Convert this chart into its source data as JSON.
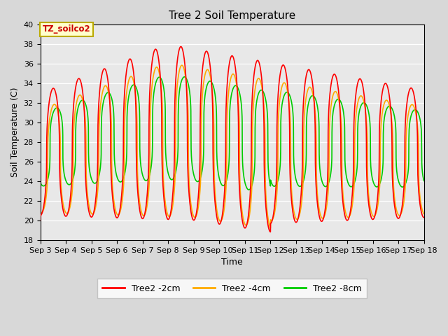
{
  "title": "Tree 2 Soil Temperature",
  "xlabel": "Time",
  "ylabel": "Soil Temperature (C)",
  "ylim": [
    18,
    40
  ],
  "xlim": [
    3,
    18
  ],
  "annotation_text": "TZ_soilco2",
  "annotation_bg": "#ffffcc",
  "annotation_border": "#bbaa00",
  "fig_facecolor": "#d8d8d8",
  "ax_facecolor": "#e8e8e8",
  "legend_labels": [
    "Tree2 -2cm",
    "Tree2 -4cm",
    "Tree2 -8cm"
  ],
  "line_colors": [
    "#ff0000",
    "#ffaa00",
    "#00cc00"
  ],
  "line_width": 1.2,
  "xtick_labels": [
    "Sep 3",
    "Sep 4",
    "Sep 5",
    "Sep 6",
    "Sep 7",
    "Sep 8",
    "Sep 9",
    "Sep 10",
    "Sep 11",
    "Sep 12",
    "Sep 13",
    "Sep 14",
    "Sep 15",
    "Sep 16",
    "Sep 17",
    "Sep 18"
  ],
  "x_days": [
    3,
    4,
    5,
    6,
    7,
    8,
    9,
    10,
    11,
    12,
    13,
    14,
    15,
    16,
    17,
    18
  ],
  "yticks": [
    18,
    20,
    22,
    24,
    26,
    28,
    30,
    32,
    34,
    36,
    38,
    40
  ]
}
